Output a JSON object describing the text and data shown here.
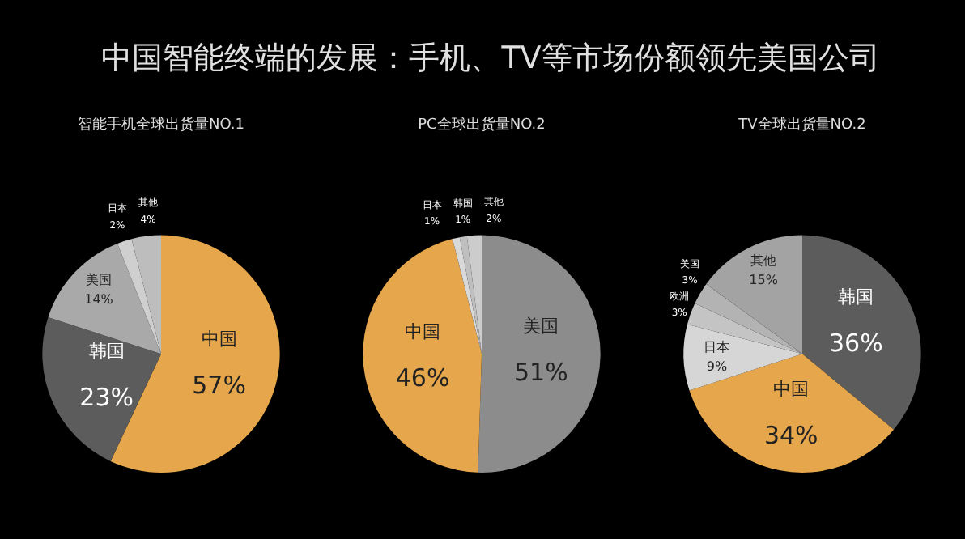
{
  "chart_data": [
    {
      "type": "pie",
      "title": "中国智能终端的发展：手机、TV等市场份额领先美国公司",
      "subtitle": "智能手机全球出货量NO.1",
      "categories": [
        "中国",
        "韩国",
        "美国",
        "日本",
        "其他"
      ],
      "values": [
        57,
        23,
        14,
        2,
        4
      ],
      "value_labels": [
        "57%",
        "23%",
        "14%",
        "2%",
        "4%"
      ],
      "colors": [
        "#e6a64b",
        "#5c5c5c",
        "#a9a9a9",
        "#cfcfcf",
        "#bdbdbd"
      ]
    },
    {
      "type": "pie",
      "title": "PC全球出货量NO.2",
      "categories": [
        "美国",
        "中国",
        "日本",
        "韩国",
        "其他"
      ],
      "values": [
        51,
        46,
        1,
        1,
        2
      ],
      "value_labels": [
        "51%",
        "46%",
        "1%",
        "1%",
        "2%"
      ],
      "colors": [
        "#8c8c8c",
        "#e6a64b",
        "#d9d9d9",
        "#bfbfbf",
        "#cccccc"
      ]
    },
    {
      "type": "pie",
      "title": "TV全球出货量NO.2",
      "categories": [
        "韩国",
        "中国",
        "日本",
        "欧洲",
        "美国",
        "其他"
      ],
      "values": [
        36,
        34,
        9,
        3,
        3,
        15
      ],
      "value_labels": [
        "36%",
        "34%",
        "9%",
        "3%",
        "3%",
        "15%"
      ],
      "colors": [
        "#5c5c5c",
        "#e6a64b",
        "#d6d6d6",
        "#c4c4c4",
        "#b3b3b3",
        "#a3a3a3"
      ]
    }
  ]
}
